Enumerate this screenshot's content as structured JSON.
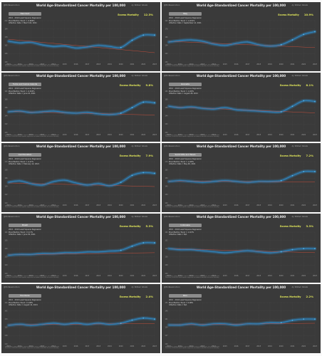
{
  "common": {
    "title": "World Age-Standardized Cancer Mortality per 100,000",
    "corner": "@ProfessorLimon",
    "credit": "by William Skoda",
    "excess_label": "Excess Mortality",
    "info_line1": "2010 - 2019 Least Squares Regression",
    "info_line2_prefix": "Pre-Inflection Trend = ",
    "info_line3_prefix": "Inflection Date = ",
    "footnote_line1": "Source: GBD / IHME estimates, age-standardized cancer mortality per 100,000 population",
    "footnote_line2": "Trend line: 2010-2019 least squares regression extended as baseline for excess mortality",
    "palette": {
      "background": "#3a3a3a",
      "actual_line": "#2f8fd0",
      "band": "#2f8fd0",
      "trend_line": "#d2503c",
      "grid": "#505050",
      "accent": "#e2e85b"
    }
  },
  "chart_data": [
    {
      "type": "line",
      "country": "Denmark",
      "pre_inflection_trend": "-0.969%",
      "inflection_date": "March 04, 2021",
      "excess_mortality": "12.3%",
      "x": [
        2010,
        2011,
        2012,
        2013,
        2014,
        2015,
        2016,
        2017,
        2018,
        2019,
        2020,
        2021,
        2022,
        2023
      ],
      "series": [
        {
          "values": [
            170,
            167,
            168,
            163,
            160,
            161,
            157,
            159,
            162,
            160,
            158,
            172,
            182,
            182
          ]
        },
        {
          "values": [
            174,
            172,
            170,
            168,
            166,
            164,
            162,
            160,
            158,
            156,
            154,
            152,
            150,
            148
          ]
        }
      ],
      "ylim": [
        130,
        210
      ]
    },
    {
      "type": "line",
      "country": "Italy",
      "pre_inflection_trend": "-0.451%",
      "inflection_date": "September 14, 2021",
      "excess_mortality": "10.9%",
      "x": [
        2010,
        2011,
        2012,
        2013,
        2014,
        2015,
        2016,
        2017,
        2018,
        2019,
        2020,
        2021,
        2022,
        2023
      ],
      "series": [
        {
          "values": [
            159,
            161,
            162,
            160,
            156,
            154,
            157,
            159,
            155,
            153,
            155,
            162,
            170,
            174
          ]
        },
        {
          "values": [
            160,
            159.3,
            158.6,
            157.9,
            157.2,
            156.5,
            155.8,
            155.1,
            154.4,
            153.7,
            153,
            152.3,
            151.6,
            150.9
          ]
        }
      ],
      "ylim": [
        130,
        190
      ]
    },
    {
      "type": "line",
      "country": "Turks and Caicos Islands",
      "pre_inflection_trend": "-0.322%",
      "inflection_date": "June 22, 2021",
      "excess_mortality": "9.8%",
      "x": [
        2010,
        2011,
        2012,
        2013,
        2014,
        2015,
        2016,
        2017,
        2018,
        2019,
        2020,
        2021,
        2022,
        2023
      ],
      "series": [
        {
          "values": [
            150,
            151,
            149,
            150,
            151,
            149,
            148,
            149,
            147,
            146,
            148,
            156,
            164,
            163
          ]
        },
        {
          "values": [
            150.5,
            150.1,
            149.7,
            149.3,
            148.9,
            148.5,
            148.1,
            147.7,
            147.3,
            146.9,
            146.5,
            146.1,
            145.7,
            145.3
          ]
        }
      ],
      "ylim": [
        120,
        180
      ]
    },
    {
      "type": "line",
      "country": "Grenada",
      "pre_inflection_trend": "-0.48%",
      "inflection_date": "August 28, 2021",
      "excess_mortality": "8.1%",
      "x": [
        2010,
        2011,
        2012,
        2013,
        2014,
        2015,
        2016,
        2017,
        2018,
        2019,
        2020,
        2021,
        2022,
        2023
      ],
      "series": [
        {
          "values": [
            158,
            156,
            157,
            155,
            154,
            156,
            153,
            152,
            151,
            150,
            150,
            158,
            166,
            165
          ]
        },
        {
          "values": [
            157.5,
            156.8,
            156.1,
            155.4,
            154.7,
            154,
            153.3,
            152.6,
            151.9,
            151.2,
            150.5,
            149.8,
            149.1,
            148.4
          ]
        }
      ],
      "ylim": [
        120,
        180
      ]
    },
    {
      "type": "line",
      "country": "Liechtenstein",
      "pre_inflection_trend": "-0.27%",
      "inflection_date": "February 12, 2021",
      "excess_mortality": "7.9%",
      "x": [
        2010,
        2011,
        2012,
        2013,
        2014,
        2015,
        2016,
        2017,
        2018,
        2019,
        2020,
        2021,
        2022,
        2023
      ],
      "series": [
        {
          "values": [
            140,
            142,
            138,
            136,
            141,
            143,
            139,
            136,
            138,
            135,
            140,
            150,
            154,
            153
          ]
        },
        {
          "values": [
            139,
            138.6,
            138.2,
            137.8,
            137.4,
            137,
            136.6,
            136.2,
            135.8,
            135.4,
            135,
            134.6,
            134.2,
            133.8
          ]
        }
      ],
      "ylim": [
        110,
        170
      ]
    },
    {
      "type": "line",
      "country": "Saint Kitts and Nevis",
      "pre_inflection_trend": "-0.08%",
      "inflection_date": "May 06, 2021",
      "excess_mortality": "7.2%",
      "x": [
        2010,
        2011,
        2012,
        2013,
        2014,
        2015,
        2016,
        2017,
        2018,
        2019,
        2020,
        2021,
        2022,
        2023
      ],
      "series": [
        {
          "values": [
            146,
            147,
            146,
            145,
            146,
            147,
            146,
            145,
            146,
            146,
            147,
            153,
            158,
            158
          ]
        },
        {
          "values": [
            146.5,
            146.4,
            146.3,
            146.2,
            146.1,
            146,
            145.9,
            145.8,
            145.7,
            145.6,
            145.5,
            145.4,
            145.3,
            145.2
          ]
        }
      ],
      "ylim": [
        120,
        170
      ]
    },
    {
      "type": "line",
      "country": "Brazil",
      "pre_inflection_trend": "0.17%",
      "inflection_date": "June 30, 2021",
      "excess_mortality": "5.3%",
      "x": [
        2010,
        2011,
        2012,
        2013,
        2014,
        2015,
        2016,
        2017,
        2018,
        2019,
        2020,
        2021,
        2022,
        2023
      ],
      "series": [
        {
          "values": [
            132,
            133,
            133,
            134,
            134,
            135,
            135,
            136,
            136,
            137,
            138,
            143,
            147,
            147
          ]
        },
        {
          "values": [
            132.5,
            132.7,
            132.9,
            133.1,
            133.3,
            133.5,
            133.7,
            133.9,
            134.1,
            134.3,
            134.5,
            134.7,
            134.9,
            135.1
          ]
        }
      ],
      "ylim": [
        110,
        160
      ]
    },
    {
      "type": "line",
      "country": "Indonesia",
      "pre_inflection_trend": "-0.23%",
      "inflection_date": "N/A",
      "excess_mortality": "3.3%",
      "x": [
        2010,
        2011,
        2012,
        2013,
        2014,
        2015,
        2016,
        2017,
        2018,
        2019,
        2020,
        2021,
        2022,
        2023
      ],
      "series": [
        {
          "values": [
            144,
            143,
            143,
            142,
            141,
            140,
            141,
            142,
            141,
            140,
            141,
            143,
            144,
            144
          ]
        },
        {
          "values": [
            144,
            143.7,
            143.4,
            143.1,
            142.8,
            142.5,
            142.2,
            141.9,
            141.6,
            141.3,
            141,
            140.7,
            140.4,
            140.1
          ]
        }
      ],
      "ylim": [
        120,
        160
      ]
    },
    {
      "type": "line",
      "country": "Honduras",
      "pre_inflection_trend": "0.08%",
      "inflection_date": "August 12, 2021",
      "excess_mortality": "2.4%",
      "x": [
        2010,
        2011,
        2012,
        2013,
        2014,
        2015,
        2016,
        2017,
        2018,
        2019,
        2020,
        2021,
        2022,
        2023
      ],
      "series": [
        {
          "values": [
            128,
            129,
            128,
            129,
            130,
            129,
            130,
            129,
            130,
            129,
            130,
            133,
            135,
            134
          ]
        },
        {
          "values": [
            128.5,
            128.6,
            128.7,
            128.8,
            128.9,
            129,
            129.1,
            129.2,
            129.3,
            129.4,
            129.5,
            129.6,
            129.7,
            129.8
          ]
        }
      ],
      "ylim": [
        110,
        150
      ]
    },
    {
      "type": "line",
      "country": "Peru",
      "pre_inflection_trend": "0.08%",
      "inflection_date": "N/A",
      "excess_mortality": "2.2%",
      "x": [
        2010,
        2011,
        2012,
        2013,
        2014,
        2015,
        2016,
        2017,
        2018,
        2019,
        2020,
        2021,
        2022,
        2023
      ],
      "series": [
        {
          "values": [
            136,
            136,
            137,
            136,
            137,
            137,
            136,
            137,
            137,
            138,
            138,
            140,
            141,
            141
          ]
        },
        {
          "values": [
            136.2,
            136.3,
            136.4,
            136.5,
            136.6,
            136.7,
            136.8,
            136.9,
            137,
            137.1,
            137.2,
            137.3,
            137.4,
            137.5
          ]
        }
      ],
      "ylim": [
        120,
        155
      ]
    }
  ]
}
